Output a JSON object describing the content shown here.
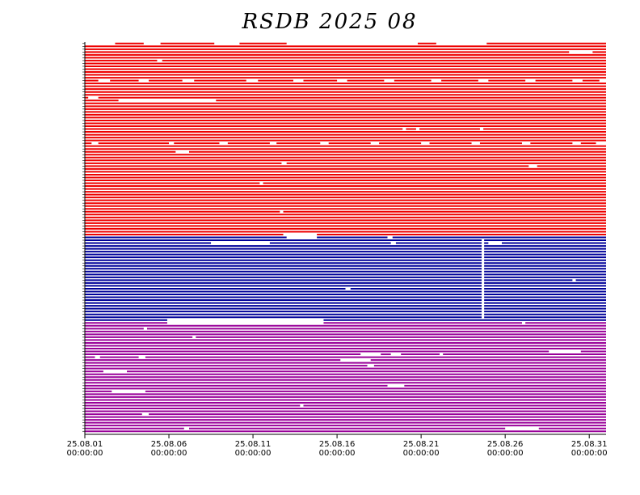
{
  "chart_data": {
    "type": "timeline",
    "title": "RSDB  2025  08",
    "xlim": [
      0,
      31
    ],
    "xticks": [
      {
        "value": 0,
        "label": "25.08.01",
        "time": "00:00:00"
      },
      {
        "value": 5,
        "label": "25.08.06",
        "time": "00:00:00"
      },
      {
        "value": 10,
        "label": "25.08.11",
        "time": "00:00:00"
      },
      {
        "value": 15,
        "label": "25.08.16",
        "time": "00:00:00"
      },
      {
        "value": 20,
        "label": "25.08.21",
        "time": "00:00:00"
      },
      {
        "value": 25,
        "label": "25.08.26",
        "time": "00:00:00"
      },
      {
        "value": 30,
        "label": "25.08.31",
        "time": "00:00:00"
      }
    ],
    "series": [
      {
        "color": "#ee0000",
        "rows": [
          [
            [
              1.8,
              3.5
            ],
            [
              4.5,
              7.7
            ],
            [
              9.2,
              12.0
            ],
            [
              19.8,
              20.9
            ],
            [
              23.9,
              31
            ]
          ],
          [
            [
              0,
              31
            ]
          ],
          [
            [
              0,
              31
            ]
          ],
          [
            [
              0,
              28.8
            ],
            [
              30.2,
              31
            ]
          ],
          [
            [
              0,
              31
            ]
          ],
          [
            [
              0,
              31
            ]
          ],
          [
            [
              0,
              4.3
            ],
            [
              4.6,
              31
            ]
          ],
          [
            [
              0,
              31
            ]
          ],
          [
            [
              0,
              31
            ]
          ],
          [
            [
              0,
              31
            ]
          ],
          [
            [
              0,
              31
            ]
          ],
          [
            [
              0,
              31
            ]
          ],
          [
            [
              0,
              31
            ]
          ],
          [
            [
              0,
              0.8
            ],
            [
              1.5,
              3.2
            ],
            [
              3.8,
              5.8
            ],
            [
              6.5,
              9.6
            ],
            [
              10.3,
              12.4
            ],
            [
              13.0,
              15.0
            ],
            [
              15.6,
              17.8
            ],
            [
              18.4,
              20.6
            ],
            [
              21.2,
              23.4
            ],
            [
              24.0,
              26.2
            ],
            [
              26.8,
              29.0
            ],
            [
              29.6,
              30.6
            ]
          ],
          [
            [
              0,
              31
            ]
          ],
          [
            [
              0,
              31
            ]
          ],
          [
            [
              0,
              31
            ]
          ],
          [
            [
              0,
              31
            ]
          ],
          [
            [
              0,
              31
            ]
          ],
          [
            [
              0,
              0.2
            ],
            [
              0.8,
              31
            ]
          ],
          [
            [
              0,
              2.0
            ],
            [
              7.8,
              31
            ]
          ],
          [
            [
              0,
              31
            ]
          ],
          [
            [
              0,
              31
            ]
          ],
          [
            [
              0,
              31
            ]
          ],
          [
            [
              0,
              31
            ]
          ],
          [
            [
              0,
              31
            ]
          ],
          [
            [
              0,
              31
            ]
          ],
          [
            [
              0,
              31
            ]
          ],
          [
            [
              0,
              31
            ]
          ],
          [
            [
              0,
              31
            ]
          ],
          [
            [
              0,
              18.9
            ],
            [
              19.1,
              19.7
            ],
            [
              19.9,
              23.5
            ],
            [
              23.7,
              31
            ]
          ],
          [
            [
              0,
              31
            ]
          ],
          [
            [
              0,
              31
            ]
          ],
          [
            [
              0,
              31
            ]
          ],
          [
            [
              0,
              31
            ]
          ],
          [
            [
              0,
              0.4
            ],
            [
              0.8,
              5.0
            ],
            [
              5.3,
              8.0
            ],
            [
              8.5,
              11.0
            ],
            [
              11.4,
              14.0
            ],
            [
              14.5,
              17.0
            ],
            [
              17.5,
              20.0
            ],
            [
              20.5,
              23.0
            ],
            [
              23.5,
              26.0
            ],
            [
              26.5,
              29.0
            ],
            [
              29.5,
              30.4
            ]
          ],
          [
            [
              0,
              31
            ]
          ],
          [
            [
              0,
              31
            ]
          ],
          [
            [
              0,
              5.4
            ],
            [
              6.2,
              31
            ]
          ],
          [
            [
              0,
              31
            ]
          ],
          [
            [
              0,
              31
            ]
          ],
          [
            [
              0,
              31
            ]
          ],
          [
            [
              0,
              11.7
            ],
            [
              12.0,
              31
            ]
          ],
          [
            [
              0,
              26.4
            ],
            [
              26.9,
              31
            ]
          ],
          [
            [
              0,
              31
            ]
          ],
          [
            [
              0,
              31
            ]
          ],
          [
            [
              0,
              31
            ]
          ],
          [
            [
              0,
              31
            ]
          ],
          [
            [
              0,
              31
            ]
          ],
          [
            [
              0,
              10.4
            ],
            [
              10.6,
              31
            ]
          ],
          [
            [
              0,
              31
            ]
          ],
          [
            [
              0,
              31
            ]
          ],
          [
            [
              0,
              31
            ]
          ],
          [
            [
              0,
              31
            ]
          ],
          [
            [
              0,
              31
            ]
          ],
          [
            [
              0,
              31
            ]
          ],
          [
            [
              0,
              31
            ]
          ],
          [
            [
              0,
              31
            ]
          ],
          [
            [
              0,
              31
            ]
          ],
          [
            [
              0,
              11.6
            ],
            [
              11.8,
              31
            ]
          ],
          [
            [
              0,
              31
            ]
          ],
          [
            [
              0,
              31
            ]
          ],
          [
            [
              0,
              31
            ]
          ],
          [
            [
              0,
              31
            ]
          ],
          [
            [
              0,
              31
            ]
          ],
          [
            [
              0,
              31
            ]
          ],
          [
            [
              0,
              31
            ]
          ],
          [
            [
              0,
              11.8
            ],
            [
              13.8,
              31
            ]
          ]
        ]
      },
      {
        "color": "#000099",
        "rows": [
          [
            [
              0,
              12.0
            ],
            [
              13.8,
              18.0
            ],
            [
              18.3,
              31
            ]
          ],
          [
            [
              0,
              23.6
            ],
            [
              23.75,
              31
            ]
          ],
          [
            [
              0,
              7.5
            ],
            [
              11.0,
              18.2
            ],
            [
              18.5,
              23.6
            ],
            [
              23.75,
              24.0
            ],
            [
              24.8,
              31
            ]
          ],
          [
            [
              0,
              23.6
            ],
            [
              23.75,
              31
            ]
          ],
          [
            [
              0,
              23.6
            ],
            [
              23.75,
              31
            ]
          ],
          [
            [
              0,
              23.6
            ],
            [
              23.75,
              31
            ]
          ],
          [
            [
              0,
              23.6
            ],
            [
              23.75,
              31
            ]
          ],
          [
            [
              0,
              23.6
            ],
            [
              23.75,
              31
            ]
          ],
          [
            [
              0,
              23.6
            ],
            [
              23.75,
              31
            ]
          ],
          [
            [
              0,
              23.6
            ],
            [
              23.75,
              31
            ]
          ],
          [
            [
              0,
              23.6
            ],
            [
              23.75,
              31
            ]
          ],
          [
            [
              0,
              23.6
            ],
            [
              23.75,
              31
            ]
          ],
          [
            [
              0,
              23.6
            ],
            [
              23.75,
              31
            ]
          ],
          [
            [
              0,
              23.6
            ],
            [
              23.75,
              31
            ]
          ],
          [
            [
              0,
              23.6
            ],
            [
              23.75,
              31
            ]
          ],
          [
            [
              0,
              23.6
            ],
            [
              23.75,
              29.0
            ],
            [
              29.2,
              31
            ]
          ],
          [
            [
              0,
              23.6
            ],
            [
              23.75,
              31
            ]
          ],
          [
            [
              0,
              23.6
            ],
            [
              23.75,
              31
            ]
          ],
          [
            [
              0,
              15.5
            ],
            [
              15.8,
              23.6
            ],
            [
              23.75,
              31
            ]
          ],
          [
            [
              0,
              23.6
            ],
            [
              23.75,
              31
            ]
          ],
          [
            [
              0,
              23.6
            ],
            [
              23.75,
              31
            ]
          ],
          [
            [
              0,
              23.6
            ],
            [
              23.75,
              31
            ]
          ],
          [
            [
              0,
              23.6
            ],
            [
              23.75,
              31
            ]
          ],
          [
            [
              0,
              23.6
            ],
            [
              23.75,
              31
            ]
          ],
          [
            [
              0,
              23.6
            ],
            [
              23.75,
              31
            ]
          ],
          [
            [
              0,
              23.6
            ],
            [
              23.75,
              31
            ]
          ],
          [
            [
              0,
              23.6
            ],
            [
              23.75,
              31
            ]
          ],
          [
            [
              0,
              23.6
            ],
            [
              23.75,
              31
            ]
          ],
          [
            [
              0,
              23.6
            ],
            [
              23.75,
              31
            ]
          ],
          [
            [
              0,
              4.9
            ],
            [
              14.2,
              31
            ]
          ]
        ]
      },
      {
        "color": "#990099",
        "rows": [
          [
            [
              0,
              4.9
            ],
            [
              14.2,
              26.0
            ],
            [
              26.2,
              31
            ]
          ],
          [
            [
              0,
              31
            ]
          ],
          [
            [
              0,
              3.5
            ],
            [
              3.7,
              31
            ]
          ],
          [
            [
              0,
              31
            ]
          ],
          [
            [
              0,
              31
            ]
          ],
          [
            [
              0,
              6.4
            ],
            [
              6.6,
              31
            ]
          ],
          [
            [
              0,
              31
            ]
          ],
          [
            [
              0,
              31
            ]
          ],
          [
            [
              0,
              31
            ]
          ],
          [
            [
              0,
              31
            ]
          ],
          [
            [
              0,
              27.6
            ],
            [
              29.5,
              31
            ]
          ],
          [
            [
              0,
              16.4
            ],
            [
              17.6,
              18.2
            ],
            [
              18.8,
              21.1
            ],
            [
              21.3,
              31
            ]
          ],
          [
            [
              0,
              0.6
            ],
            [
              0.9,
              3.2
            ],
            [
              3.6,
              31
            ]
          ],
          [
            [
              0,
              15.2
            ],
            [
              17.0,
              31
            ]
          ],
          [
            [
              0,
              31
            ]
          ],
          [
            [
              0,
              16.8
            ],
            [
              17.2,
              31
            ]
          ],
          [
            [
              0,
              31
            ]
          ],
          [
            [
              0,
              1.1
            ],
            [
              2.5,
              31
            ]
          ],
          [
            [
              0,
              31
            ]
          ],
          [
            [
              0,
              31
            ]
          ],
          [
            [
              0,
              31
            ]
          ],
          [
            [
              0,
              31
            ]
          ],
          [
            [
              0,
              18.0
            ],
            [
              19.0,
              31
            ]
          ],
          [
            [
              0,
              31
            ]
          ],
          [
            [
              0,
              1.6
            ],
            [
              3.6,
              31
            ]
          ],
          [
            [
              0,
              31
            ]
          ],
          [
            [
              0,
              31
            ]
          ],
          [
            [
              0,
              31
            ]
          ],
          [
            [
              0,
              31
            ]
          ],
          [
            [
              0,
              12.8
            ],
            [
              13.0,
              31
            ]
          ],
          [
            [
              0,
              31
            ]
          ],
          [
            [
              0,
              31
            ]
          ],
          [
            [
              0,
              3.4
            ],
            [
              3.8,
              31
            ]
          ],
          [
            [
              0,
              31
            ]
          ],
          [
            [
              0,
              31
            ]
          ],
          [
            [
              0,
              31
            ]
          ],
          [
            [
              0,
              31
            ]
          ],
          [
            [
              0,
              5.9
            ],
            [
              6.2,
              25.0
            ],
            [
              27.0,
              31
            ]
          ],
          [
            [
              0,
              31
            ]
          ]
        ]
      }
    ]
  }
}
